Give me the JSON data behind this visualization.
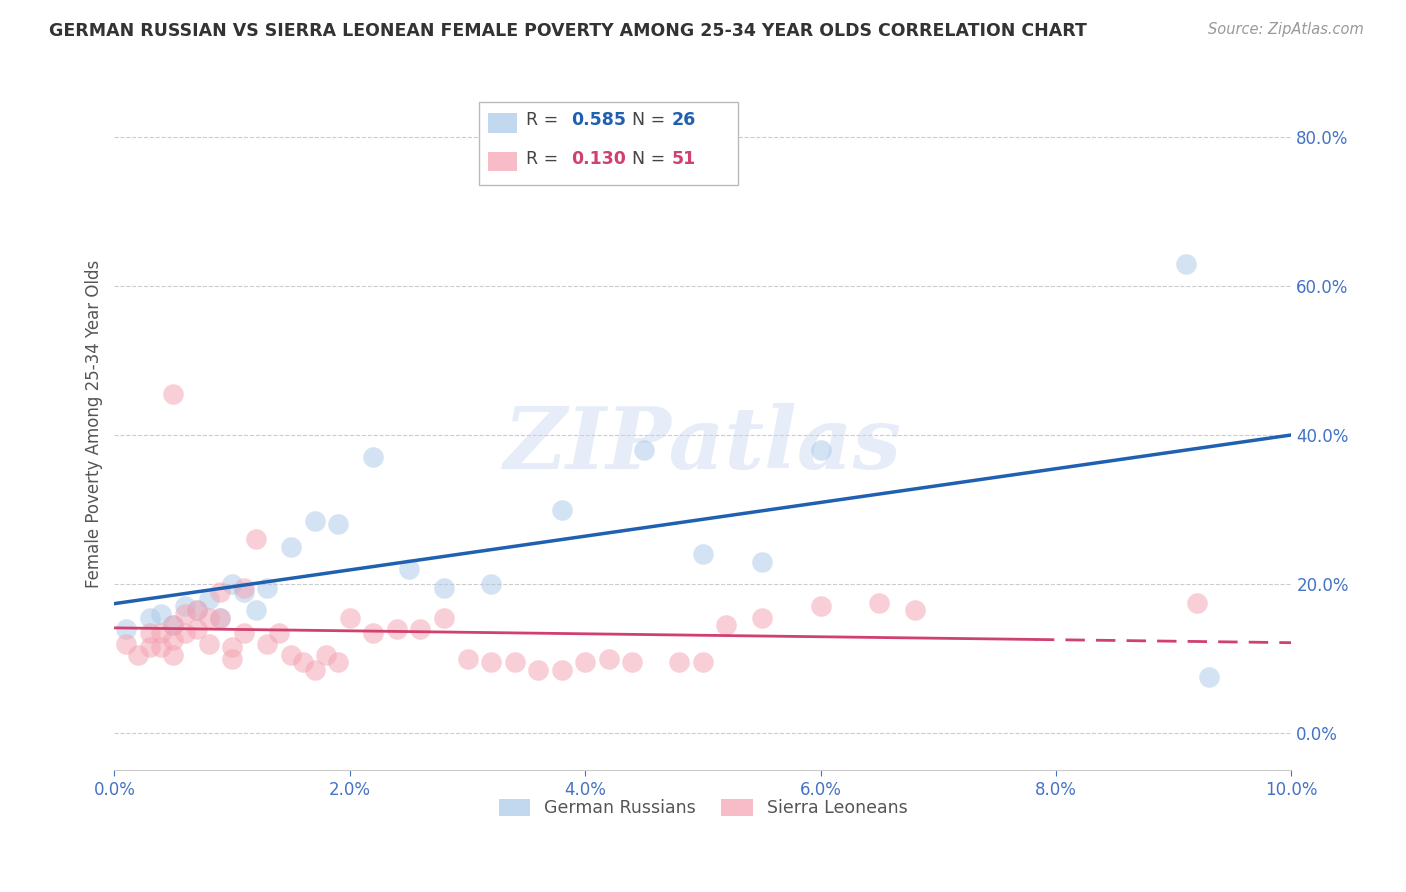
{
  "title": "GERMAN RUSSIAN VS SIERRA LEONEAN FEMALE POVERTY AMONG 25-34 YEAR OLDS CORRELATION CHART",
  "source": "Source: ZipAtlas.com",
  "ylabel": "Female Poverty Among 25-34 Year Olds",
  "legend_label1": "German Russians",
  "legend_label2": "Sierra Leoneans",
  "R1": 0.585,
  "N1": 26,
  "R2": 0.13,
  "N2": 51,
  "xlim": [
    0.0,
    0.1
  ],
  "ylim": [
    -0.05,
    0.88
  ],
  "yticks": [
    0.0,
    0.2,
    0.4,
    0.6,
    0.8
  ],
  "xticks": [
    0.0,
    0.02,
    0.04,
    0.06,
    0.08,
    0.1
  ],
  "blue_color": "#a8c8e8",
  "blue_line_color": "#2060b0",
  "pink_color": "#f4a0b0",
  "pink_line_color": "#d04070",
  "watermark": "ZIPatlas",
  "blue_scatter_x": [
    0.001,
    0.003,
    0.004,
    0.005,
    0.006,
    0.007,
    0.008,
    0.009,
    0.01,
    0.011,
    0.012,
    0.013,
    0.015,
    0.017,
    0.019,
    0.022,
    0.025,
    0.028,
    0.032,
    0.038,
    0.045,
    0.05,
    0.055,
    0.06,
    0.091,
    0.093
  ],
  "blue_scatter_y": [
    0.14,
    0.155,
    0.16,
    0.145,
    0.17,
    0.165,
    0.18,
    0.155,
    0.2,
    0.19,
    0.165,
    0.195,
    0.25,
    0.285,
    0.28,
    0.37,
    0.22,
    0.195,
    0.2,
    0.3,
    0.38,
    0.24,
    0.23,
    0.38,
    0.63,
    0.075
  ],
  "pink_scatter_x": [
    0.001,
    0.002,
    0.003,
    0.003,
    0.004,
    0.004,
    0.005,
    0.005,
    0.005,
    0.006,
    0.006,
    0.007,
    0.007,
    0.008,
    0.008,
    0.009,
    0.009,
    0.01,
    0.01,
    0.011,
    0.011,
    0.012,
    0.013,
    0.014,
    0.015,
    0.016,
    0.017,
    0.018,
    0.019,
    0.02,
    0.022,
    0.024,
    0.026,
    0.028,
    0.03,
    0.032,
    0.034,
    0.036,
    0.038,
    0.04,
    0.042,
    0.044,
    0.048,
    0.05,
    0.052,
    0.055,
    0.06,
    0.065,
    0.068,
    0.092,
    0.005
  ],
  "pink_scatter_y": [
    0.12,
    0.105,
    0.115,
    0.135,
    0.115,
    0.135,
    0.105,
    0.125,
    0.145,
    0.135,
    0.16,
    0.14,
    0.165,
    0.12,
    0.155,
    0.155,
    0.19,
    0.1,
    0.115,
    0.135,
    0.195,
    0.26,
    0.12,
    0.135,
    0.105,
    0.095,
    0.085,
    0.105,
    0.095,
    0.155,
    0.135,
    0.14,
    0.14,
    0.155,
    0.1,
    0.095,
    0.095,
    0.085,
    0.085,
    0.095,
    0.1,
    0.095,
    0.095,
    0.095,
    0.145,
    0.155,
    0.17,
    0.175,
    0.165,
    0.175,
    0.455
  ]
}
